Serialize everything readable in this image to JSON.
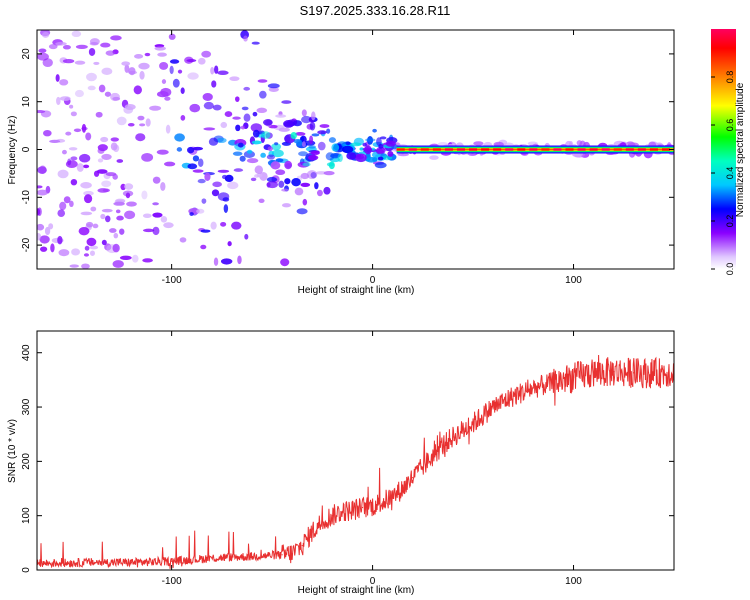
{
  "title": "S197.2025.333.16.28.R11",
  "chart_data": [
    {
      "type": "heatmap",
      "title": "",
      "xlabel": "Height of straight line (km)",
      "ylabel": "Frequency (Hz)",
      "xlim": [
        -167,
        150
      ],
      "ylim": [
        -25,
        25
      ],
      "xticks": [
        -100,
        0,
        100
      ],
      "yticks": [
        -20,
        -10,
        0,
        10,
        20
      ],
      "colorbar": {
        "label": "Normalized spectral amplitude",
        "range": [
          0.0,
          1.0
        ],
        "ticks": [
          "0.0",
          "0.2",
          "0.4",
          "0.6",
          "0.8"
        ]
      },
      "carrier": {
        "frequency_hz": 0,
        "onset_km": 12,
        "description": "strong narrow line at 0 Hz above ~12 km, amplitude ~0.8-1.0; scattered weak noise below -20 km"
      }
    },
    {
      "type": "line",
      "title": "",
      "xlabel": "Height of straight line (km)",
      "ylabel": "SNR (10 * v/v)",
      "xlim": [
        -167,
        150
      ],
      "ylim": [
        0,
        440
      ],
      "xticks": [
        -100,
        0,
        100
      ],
      "yticks": [
        0,
        100,
        200,
        300,
        400
      ],
      "series": [
        {
          "name": "SNR",
          "color": "#e83030",
          "x": [
            -167,
            -140,
            -120,
            -100,
            -80,
            -60,
            -45,
            -40,
            -35,
            -30,
            -25,
            -20,
            -15,
            -10,
            -5,
            0,
            5,
            10,
            15,
            20,
            25,
            30,
            35,
            40,
            50,
            60,
            70,
            80,
            90,
            100,
            110,
            120,
            130,
            140,
            150
          ],
          "values": [
            12,
            14,
            14,
            16,
            22,
            25,
            28,
            30,
            45,
            70,
            90,
            100,
            108,
            110,
            115,
            118,
            125,
            135,
            150,
            170,
            190,
            210,
            230,
            245,
            270,
            300,
            320,
            335,
            345,
            355,
            362,
            365,
            363,
            362,
            365
          ]
        }
      ]
    }
  ]
}
